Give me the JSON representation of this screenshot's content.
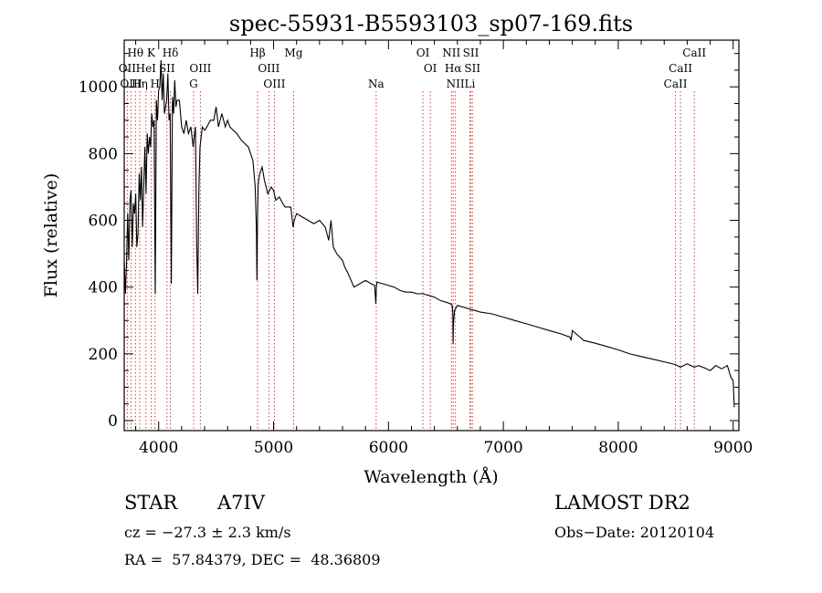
{
  "chart_data": {
    "type": "line",
    "title": "spec-55931-B5593103_sp07-169.fits",
    "xlabel": "Wavelength (Å)",
    "ylabel": "Flux (relative)",
    "xlim": [
      3700,
      9050
    ],
    "ylim": [
      -30,
      1140
    ],
    "xticks": [
      4000,
      5000,
      6000,
      7000,
      8000,
      9000
    ],
    "yticks": [
      0,
      200,
      400,
      600,
      800,
      1000
    ],
    "xtick_labels": [
      "4000",
      "5000",
      "6000",
      "7000",
      "8000",
      "9000"
    ],
    "ytick_labels": [
      "0",
      "200",
      "400",
      "600",
      "800",
      "1000"
    ],
    "grid": false,
    "series": [
      {
        "x": [
          3700,
          3710,
          3720,
          3730,
          3740,
          3750,
          3760,
          3770,
          3780,
          3790,
          3800,
          3810,
          3820,
          3830,
          3840,
          3850,
          3860,
          3870,
          3880,
          3890,
          3900,
          3910,
          3920,
          3930,
          3940,
          3950,
          3960,
          3970,
          3980,
          3990,
          4000,
          4010,
          4020,
          4030,
          4040,
          4050,
          4060,
          4070,
          4080,
          4090,
          4100,
          4110,
          4120,
          4130,
          4140,
          4150,
          4160,
          4180,
          4200,
          4220,
          4240,
          4260,
          4280,
          4300,
          4320,
          4330,
          4340,
          4350,
          4360,
          4380,
          4400,
          4420,
          4450,
          4480,
          4500,
          4520,
          4550,
          4580,
          4600,
          4620,
          4650,
          4680,
          4700,
          4720,
          4750,
          4780,
          4800,
          4820,
          4840,
          4850,
          4855,
          4860,
          4865,
          4870,
          4880,
          4900,
          4920,
          4950,
          4980,
          5000,
          5020,
          5050,
          5080,
          5100,
          5150,
          5170,
          5180,
          5200,
          5250,
          5300,
          5350,
          5400,
          5450,
          5480,
          5500,
          5520,
          5550,
          5600,
          5620,
          5650,
          5700,
          5750,
          5800,
          5850,
          5880,
          5890,
          5895,
          5900,
          5950,
          6000,
          6050,
          6100,
          6150,
          6200,
          6250,
          6300,
          6350,
          6400,
          6450,
          6500,
          6540,
          6555,
          6560,
          6563,
          6566,
          6575,
          6600,
          6650,
          6700,
          6750,
          6800,
          6900,
          7000,
          7100,
          7200,
          7300,
          7400,
          7500,
          7580,
          7590,
          7600,
          7700,
          7800,
          7900,
          8000,
          8100,
          8200,
          8300,
          8400,
          8498,
          8542,
          8600,
          8662,
          8700,
          8750,
          8800,
          8850,
          8900,
          8950,
          8980,
          9000,
          9010
        ],
        "y": [
          480,
          380,
          470,
          620,
          480,
          660,
          690,
          520,
          650,
          620,
          680,
          520,
          560,
          740,
          660,
          760,
          580,
          700,
          820,
          680,
          860,
          800,
          850,
          820,
          920,
          880,
          900,
          380,
          960,
          900,
          990,
          1000,
          1080,
          960,
          1040,
          920,
          940,
          960,
          1040,
          900,
          920,
          410,
          970,
          920,
          1020,
          940,
          960,
          960,
          880,
          860,
          900,
          860,
          880,
          820,
          880,
          540,
          380,
          700,
          820,
          880,
          870,
          880,
          900,
          900,
          940,
          880,
          920,
          880,
          900,
          880,
          870,
          860,
          850,
          840,
          830,
          820,
          800,
          780,
          700,
          580,
          420,
          600,
          700,
          720,
          740,
          760,
          720,
          680,
          700,
          690,
          660,
          670,
          650,
          640,
          640,
          580,
          600,
          620,
          610,
          600,
          590,
          600,
          580,
          540,
          600,
          520,
          500,
          480,
          460,
          440,
          400,
          410,
          420,
          410,
          405,
          350,
          400,
          415,
          410,
          405,
          400,
          390,
          385,
          385,
          380,
          380,
          375,
          370,
          360,
          355,
          350,
          345,
          320,
          230,
          290,
          330,
          345,
          340,
          335,
          330,
          325,
          320,
          310,
          300,
          290,
          280,
          270,
          260,
          250,
          240,
          270,
          240,
          232,
          222,
          212,
          200,
          192,
          184,
          176,
          168,
          160,
          170,
          160,
          165,
          158,
          150,
          165,
          155,
          165,
          130,
          120,
          40
        ]
      }
    ],
    "line_markers": [
      {
        "label": "Hθ",
        "wavelength": 3798,
        "row": 1
      },
      {
        "label": "K",
        "wavelength": 3934,
        "row": 1
      },
      {
        "label": "Hδ",
        "wavelength": 4102,
        "row": 1
      },
      {
        "label": "Hβ",
        "wavelength": 4861,
        "row": 1
      },
      {
        "label": "Mg",
        "wavelength": 5175,
        "row": 1
      },
      {
        "label": "OI",
        "wavelength": 6300,
        "row": 1
      },
      {
        "label": "NII",
        "wavelength": 6548,
        "row": 1
      },
      {
        "label": "SII",
        "wavelength": 6717,
        "row": 1
      },
      {
        "label": "CaII",
        "wavelength": 8662,
        "row": 1
      },
      {
        "label": "OII",
        "wavelength": 3727,
        "row": 2
      },
      {
        "label": "HeI",
        "wavelength": 3889,
        "row": 2
      },
      {
        "label": "SII",
        "wavelength": 4072,
        "row": 2
      },
      {
        "label": "OIII",
        "wavelength": 4363,
        "row": 2
      },
      {
        "label": "OIII",
        "wavelength": 4959,
        "row": 2
      },
      {
        "label": "OI",
        "wavelength": 6364,
        "row": 2
      },
      {
        "label": "Hα",
        "wavelength": 6563,
        "row": 2
      },
      {
        "label": "SII",
        "wavelength": 6731,
        "row": 2
      },
      {
        "label": "CaII",
        "wavelength": 8542,
        "row": 2
      },
      {
        "label": "OIII",
        "wavelength": 3760,
        "row": 3
      },
      {
        "label": "Hη",
        "wavelength": 3835,
        "row": 3
      },
      {
        "label": "H",
        "wavelength": 3968,
        "row": 3
      },
      {
        "label": "G",
        "wavelength": 4304,
        "row": 3
      },
      {
        "label": "OIII",
        "wavelength": 5007,
        "row": 3
      },
      {
        "label": "Na",
        "wavelength": 5893,
        "row": 3
      },
      {
        "label": "NII",
        "wavelength": 6583,
        "row": 3
      },
      {
        "label": "Li",
        "wavelength": 6708,
        "row": 3
      },
      {
        "label": "CaII",
        "wavelength": 8498,
        "row": 3
      }
    ]
  },
  "info": {
    "object_type": "STAR",
    "spectral_class": "A7IV",
    "survey": "LAMOST DR2",
    "redshift": "cz = −27.3 ± 2.3 km/s",
    "obs_date": "Obs−Date: 20120104",
    "coords": "RA =  57.84379, DEC =  48.36809"
  },
  "colors": {
    "spectrum": "#000000",
    "marker_line": "#d04040"
  }
}
